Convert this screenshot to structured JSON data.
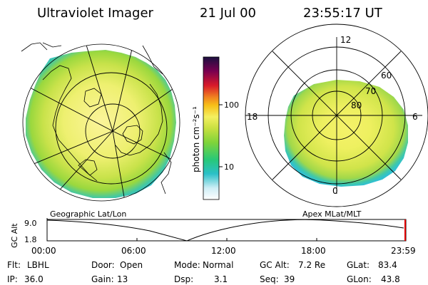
{
  "header": {
    "title": "Ultraviolet Imager",
    "date": "21 Jul 00",
    "time": "23:55:17 UT"
  },
  "colorbar": {
    "unit_label": "photon cm⁻²s⁻¹",
    "ticks": [
      "100",
      "10"
    ],
    "colors": [
      "#ffffff",
      "#cfeef6",
      "#2bc0c8",
      "#28c878",
      "#7fd43a",
      "#c8e040",
      "#f4f060",
      "#f7c018",
      "#f08020",
      "#d81a2a",
      "#7a0050",
      "#1b1040"
    ]
  },
  "left_panel": {
    "caption": "Geographic Lat/Lon"
  },
  "right_panel": {
    "caption": "Apex MLat/MLT",
    "mlt_labels": [
      "12",
      "18",
      "6",
      "0"
    ],
    "mlat_labels": [
      "60",
      "70",
      "80"
    ]
  },
  "altitude_plot": {
    "ylabel": "GC Alt",
    "y_ticks": [
      "9.0",
      "1.8"
    ],
    "x_ticks": [
      "00:00",
      "06:00",
      "12:00",
      "18:00",
      "23:59"
    ]
  },
  "status": {
    "row1": [
      {
        "label": "Flt:",
        "value": "LBHL"
      },
      {
        "label": "Door:",
        "value": "Open"
      },
      {
        "label": "Mode:",
        "value": "Normal"
      },
      {
        "label": "GC Alt:",
        "value": "7.2 Re"
      },
      {
        "label": "GLat:",
        "value": "83.4"
      }
    ],
    "row2": [
      {
        "label": "IP:",
        "value": "36.0"
      },
      {
        "label": "Gain:",
        "value": "13"
      },
      {
        "label": "Dsp:",
        "value": "3.1"
      },
      {
        "label": "Seq:",
        "value": "39"
      },
      {
        "label": "GLon:",
        "value": "43.8"
      }
    ]
  }
}
